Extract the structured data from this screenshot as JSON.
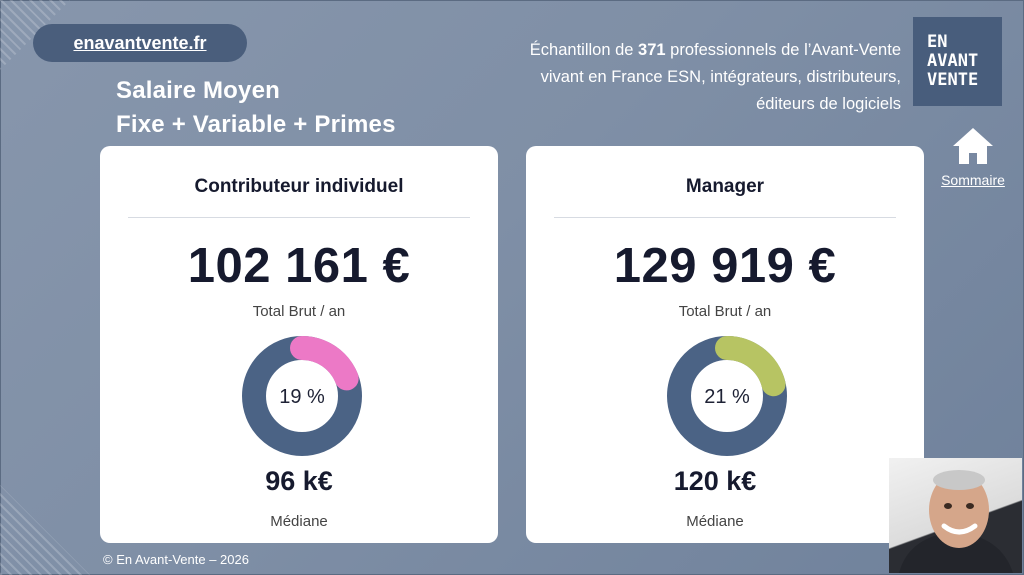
{
  "site": {
    "label": "enavantvente.fr"
  },
  "title": {
    "line1": "Salaire Moyen",
    "line2": "Fixe + Variable + Primes"
  },
  "sample": {
    "prefix": "Échantillon de ",
    "count": "371",
    "suffix": " professionnels de l’Avant-Vente",
    "line2": "vivant en France ESN, intégrateurs, distributeurs,",
    "line3": "éditeurs de logiciels"
  },
  "logo": {
    "line1": "EN",
    "line2": "AVANT",
    "line3": "VENTE"
  },
  "nav": {
    "home_label": "Sommaire",
    "icon": "home-icon"
  },
  "cards": [
    {
      "title": "Contributeur individuel",
      "amount": "102 161 €",
      "amount_sub": "Total Brut / an",
      "percent_label": "19 %",
      "percent": 19,
      "ring_color": "#4b6385",
      "accent_color": "#ec79c6",
      "median": "96 k€",
      "median_label": "Médiane"
    },
    {
      "title": "Manager",
      "amount": "129 919 €",
      "amount_sub": "Total Brut / an",
      "percent_label": "21 %",
      "percent": 21,
      "ring_color": "#4b6385",
      "accent_color": "#b7c463",
      "median": "120 k€",
      "median_label": "Médiane"
    }
  ],
  "footer": {
    "copyright": "© En Avant-Vente – 2026"
  }
}
